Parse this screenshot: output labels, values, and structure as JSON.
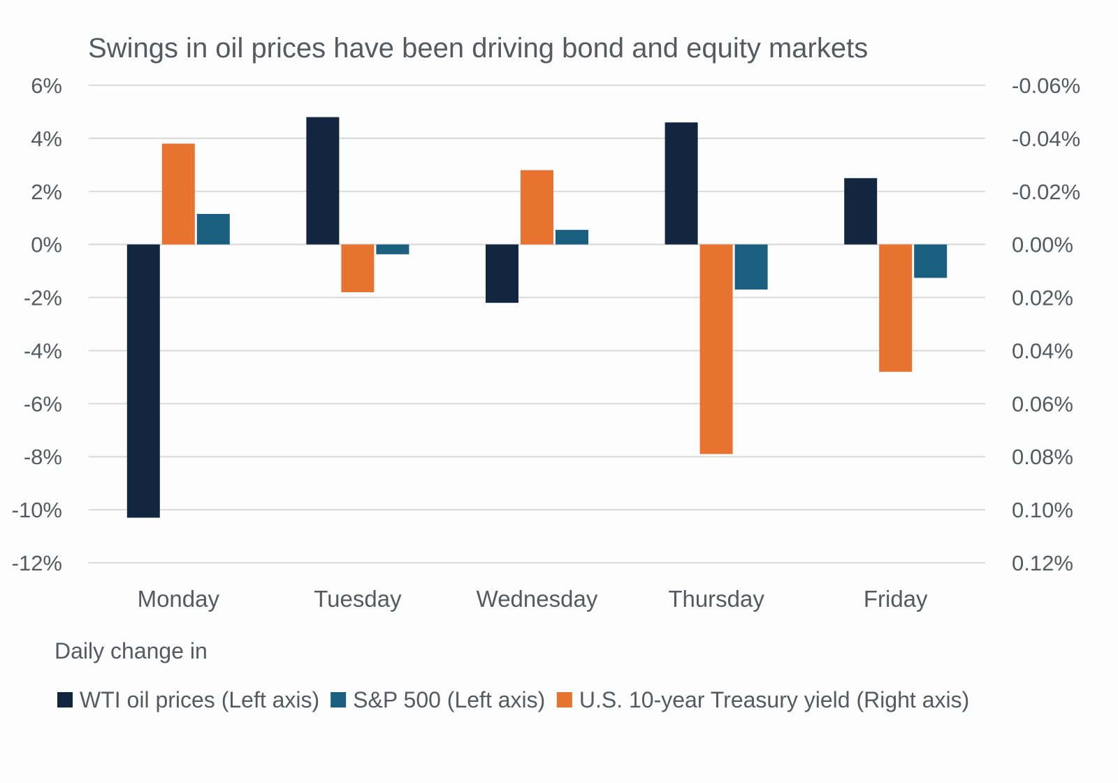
{
  "chart_data": {
    "type": "bar",
    "title": "Swings in oil prices have been driving bond and equity markets",
    "categories": [
      "Monday",
      "Tuesday",
      "Wednesday",
      "Thursday",
      "Friday"
    ],
    "series": [
      {
        "name": "WTI oil prices (Left axis)",
        "axis": "left",
        "color": "#12263f",
        "values": [
          -10.3,
          4.8,
          -2.2,
          4.6,
          2.5
        ]
      },
      {
        "name": "U.S. 10-year Treasury yield (Right axis)",
        "axis": "right",
        "color": "#e87331",
        "values": [
          -0.038,
          0.018,
          -0.028,
          0.079,
          0.048
        ]
      },
      {
        "name": "S&P 500 (Left axis)",
        "axis": "left",
        "color": "#1a5e80",
        "values": [
          1.15,
          -0.37,
          0.55,
          -1.7,
          -1.26
        ]
      }
    ],
    "legend_order": [
      0,
      2,
      1
    ],
    "legend_title": "Daily change in",
    "legend_position": "bottom-left",
    "left_axis": {
      "ylim": [
        -12,
        6
      ],
      "ticks": [
        "6%",
        "4%",
        "2%",
        "0%",
        "-2%",
        "-4%",
        "-6%",
        "-8%",
        "-10%",
        "-12%"
      ],
      "tick_values": [
        6,
        4,
        2,
        0,
        -2,
        -4,
        -6,
        -8,
        -10,
        -12
      ]
    },
    "right_axis": {
      "ylim": [
        0.12,
        -0.06
      ],
      "inverted": true,
      "ticks": [
        "-0.06%",
        "-0.04%",
        "-0.02%",
        "0.00%",
        "0.02%",
        "0.04%",
        "0.06%",
        "0.08%",
        "0.10%",
        "0.12%"
      ],
      "tick_values": [
        -0.06,
        -0.04,
        -0.02,
        0,
        0.02,
        0.04,
        0.06,
        0.08,
        0.1,
        0.12
      ]
    },
    "grid": true
  }
}
